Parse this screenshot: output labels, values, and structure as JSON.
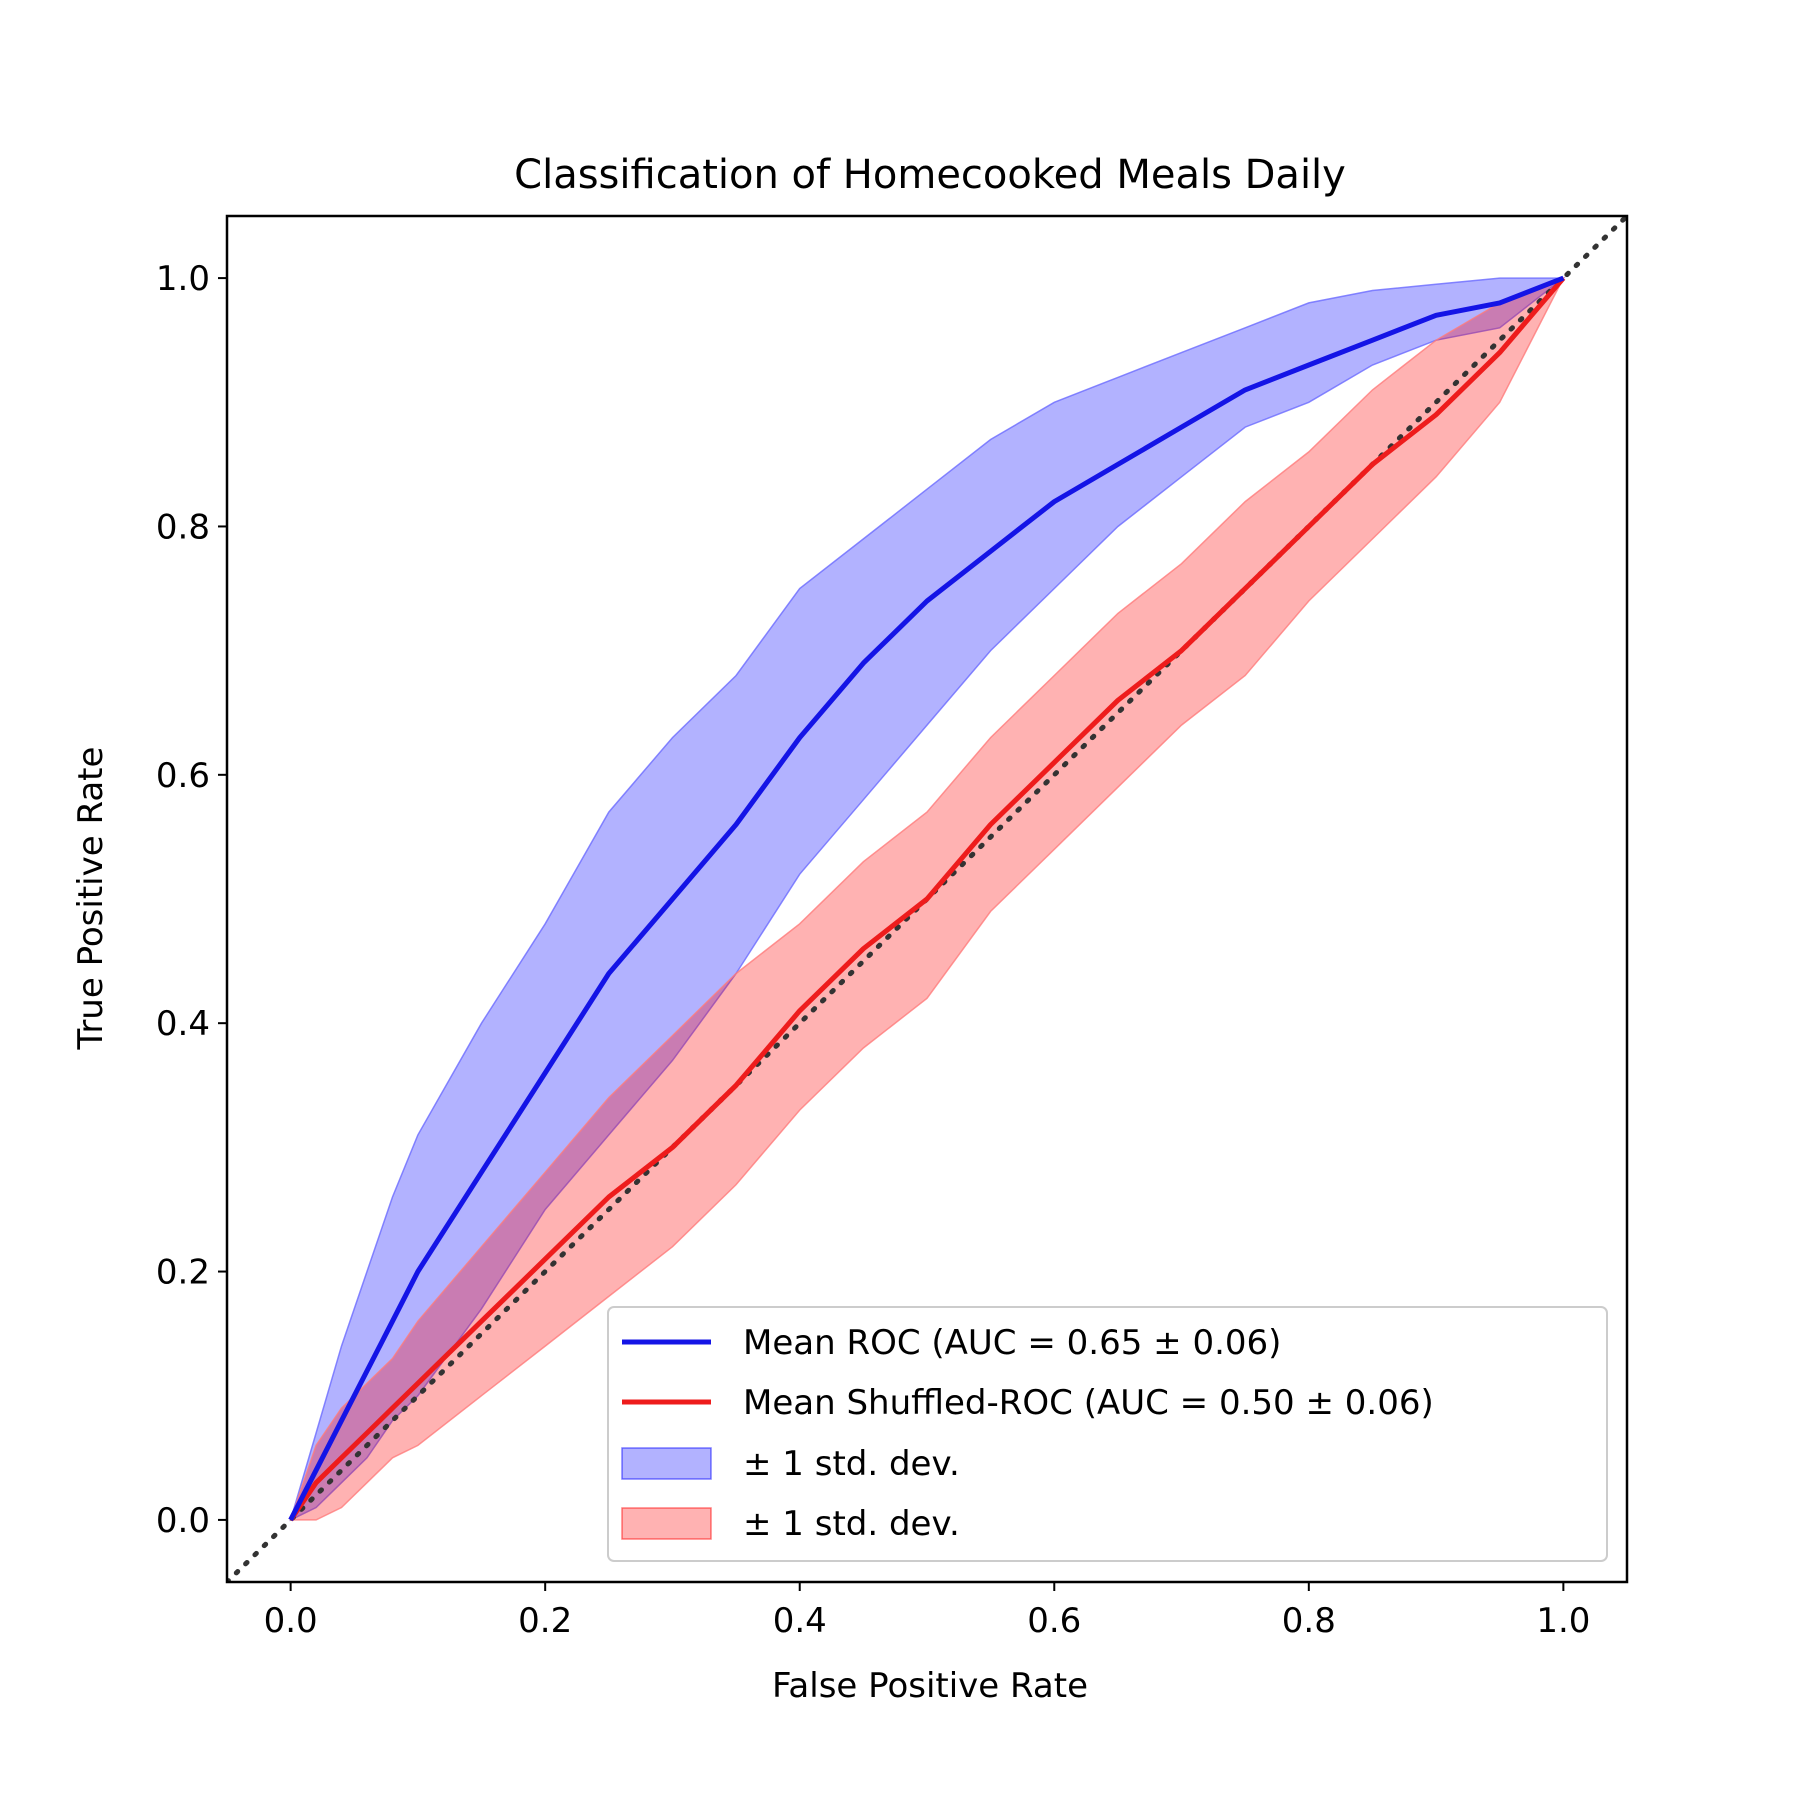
{
  "chart_data": {
    "type": "line",
    "title": "Classification of Homecooked Meals Daily",
    "xlabel": "False Positive Rate",
    "ylabel": "True Positive Rate",
    "xlim": [
      -0.05,
      1.05
    ],
    "ylim": [
      -0.05,
      1.05
    ],
    "xticks": [
      "0.0",
      "0.2",
      "0.4",
      "0.6",
      "0.8",
      "1.0"
    ],
    "yticks": [
      "0.0",
      "0.2",
      "0.4",
      "0.6",
      "0.8",
      "1.0"
    ],
    "grid": false,
    "legend_position": "lower-right",
    "x": [
      0.0,
      0.02,
      0.04,
      0.06,
      0.08,
      0.1,
      0.15,
      0.2,
      0.25,
      0.3,
      0.35,
      0.4,
      0.45,
      0.5,
      0.55,
      0.6,
      0.65,
      0.7,
      0.75,
      0.8,
      0.85,
      0.9,
      0.95,
      1.0
    ],
    "series": [
      {
        "name": "Mean ROC (AUC = 0.65 ± 0.06)",
        "color": "#1414e6",
        "values": [
          0.0,
          0.04,
          0.08,
          0.12,
          0.16,
          0.2,
          0.28,
          0.36,
          0.44,
          0.5,
          0.56,
          0.63,
          0.69,
          0.74,
          0.78,
          0.82,
          0.85,
          0.88,
          0.91,
          0.93,
          0.95,
          0.97,
          0.98,
          1.0
        ],
        "band_upper": [
          0.0,
          0.07,
          0.14,
          0.2,
          0.26,
          0.31,
          0.4,
          0.48,
          0.57,
          0.63,
          0.68,
          0.75,
          0.79,
          0.83,
          0.87,
          0.9,
          0.92,
          0.94,
          0.96,
          0.98,
          0.99,
          0.995,
          1.0,
          1.0
        ],
        "band_lower": [
          0.0,
          0.01,
          0.03,
          0.05,
          0.08,
          0.1,
          0.17,
          0.25,
          0.31,
          0.37,
          0.44,
          0.52,
          0.58,
          0.64,
          0.7,
          0.75,
          0.8,
          0.84,
          0.88,
          0.9,
          0.93,
          0.95,
          0.96,
          1.0
        ]
      },
      {
        "name": "Mean Shuffled-ROC (AUC = 0.50 ± 0.06)",
        "color": "#ee1c1c",
        "values": [
          0.0,
          0.03,
          0.05,
          0.07,
          0.09,
          0.11,
          0.16,
          0.21,
          0.26,
          0.3,
          0.35,
          0.41,
          0.46,
          0.5,
          0.56,
          0.61,
          0.66,
          0.7,
          0.75,
          0.8,
          0.85,
          0.89,
          0.94,
          1.0
        ],
        "band_upper": [
          0.0,
          0.06,
          0.09,
          0.11,
          0.13,
          0.16,
          0.22,
          0.28,
          0.34,
          0.39,
          0.44,
          0.48,
          0.53,
          0.57,
          0.63,
          0.68,
          0.73,
          0.77,
          0.82,
          0.86,
          0.91,
          0.95,
          0.98,
          1.0
        ],
        "band_lower": [
          0.0,
          0.0,
          0.01,
          0.03,
          0.05,
          0.06,
          0.1,
          0.14,
          0.18,
          0.22,
          0.27,
          0.33,
          0.38,
          0.42,
          0.49,
          0.54,
          0.59,
          0.64,
          0.68,
          0.74,
          0.79,
          0.84,
          0.9,
          1.0
        ]
      },
      {
        "name": "chance",
        "color": "#333333",
        "style": "dotted",
        "x": [
          -0.05,
          1.05
        ],
        "values": [
          -0.05,
          1.05
        ]
      }
    ],
    "legend": [
      {
        "label": "Mean ROC (AUC = 0.65 ± 0.06)",
        "kind": "line",
        "color": "#1414e6"
      },
      {
        "label": "Mean Shuffled-ROC (AUC = 0.50 ± 0.06)",
        "kind": "line",
        "color": "#ee1c1c"
      },
      {
        "label": "± 1 std. dev.",
        "kind": "patch",
        "color": "#0000ff"
      },
      {
        "label": "± 1 std. dev.",
        "kind": "patch",
        "color": "#ff0000"
      }
    ]
  }
}
